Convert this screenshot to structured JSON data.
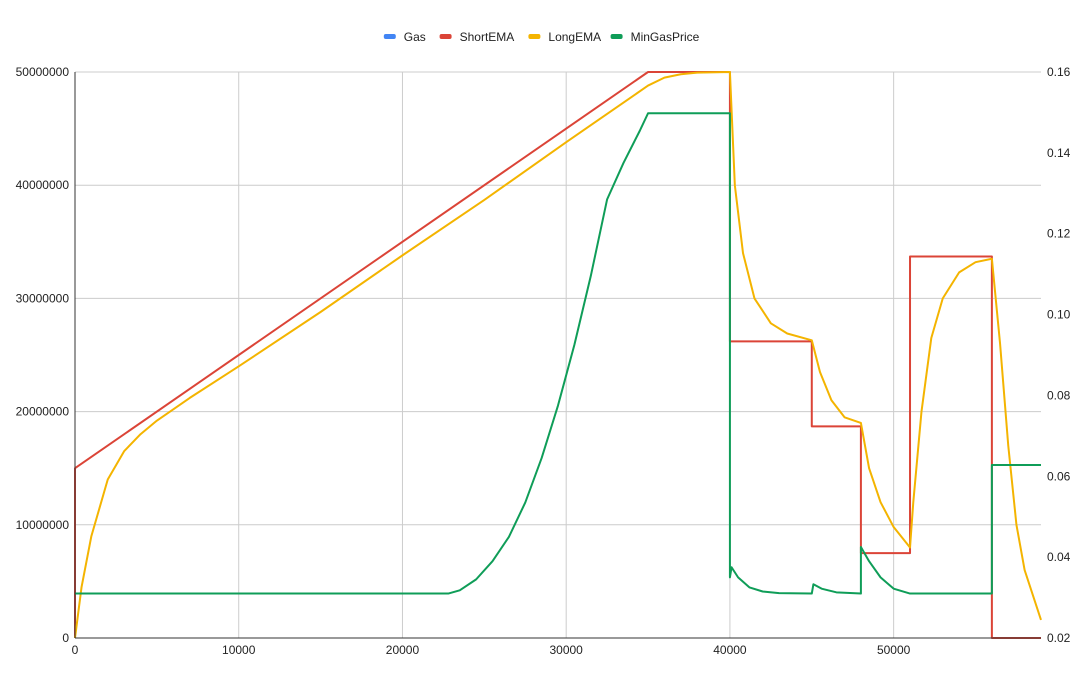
{
  "chart_data": {
    "type": "line",
    "legend_position": "top",
    "grid": true,
    "x_ticks": [
      "0",
      "10000",
      "20000",
      "30000",
      "40000",
      "50000"
    ],
    "y_left_ticks": [
      "0",
      "10000000",
      "20000000",
      "30000000",
      "40000000",
      "50000000"
    ],
    "y_right_ticks": [
      "0.02",
      "0.04",
      "0.06",
      "0.08",
      "0.10",
      "0.12",
      "0.14",
      "0.16"
    ],
    "xlim": [
      0,
      59000
    ],
    "ylim_left": [
      0,
      50000000
    ],
    "ylim_right": [
      0.02,
      0.16
    ],
    "series": [
      {
        "name": "Gas",
        "color": "#4285F4",
        "axis": "left",
        "points": []
      },
      {
        "name": "ShortEMA",
        "color": "#DB4437",
        "axis": "left",
        "points": [
          [
            0,
            0
          ],
          [
            0,
            15000000
          ],
          [
            35000,
            50000000
          ],
          [
            40000,
            50000000
          ],
          [
            40000,
            26200000
          ],
          [
            45000,
            26200000
          ],
          [
            45000,
            18700000
          ],
          [
            48000,
            18700000
          ],
          [
            48000,
            7500000
          ],
          [
            51000,
            7500000
          ],
          [
            51000,
            33700000
          ],
          [
            56000,
            33700000
          ],
          [
            56000,
            0
          ],
          [
            59000,
            0
          ]
        ]
      },
      {
        "name": "LongEMA",
        "color": "#F4B400",
        "axis": "left",
        "points": [
          [
            0,
            0
          ],
          [
            400,
            4500000
          ],
          [
            1000,
            9000000
          ],
          [
            2000,
            14000000
          ],
          [
            3000,
            16500000
          ],
          [
            4000,
            18000000
          ],
          [
            5000,
            19200000
          ],
          [
            7000,
            21200000
          ],
          [
            10000,
            24000000
          ],
          [
            15000,
            28800000
          ],
          [
            20000,
            33800000
          ],
          [
            25000,
            38700000
          ],
          [
            30000,
            43800000
          ],
          [
            34000,
            47800000
          ],
          [
            35000,
            48800000
          ],
          [
            36000,
            49500000
          ],
          [
            37000,
            49800000
          ],
          [
            38000,
            49950000
          ],
          [
            40000,
            50000000
          ],
          [
            40300,
            40000000
          ],
          [
            40800,
            34000000
          ],
          [
            41500,
            30000000
          ],
          [
            42500,
            27800000
          ],
          [
            43500,
            26900000
          ],
          [
            45000,
            26300000
          ],
          [
            45500,
            23500000
          ],
          [
            46200,
            21000000
          ],
          [
            47000,
            19500000
          ],
          [
            48000,
            19000000
          ],
          [
            48500,
            15000000
          ],
          [
            49200,
            12000000
          ],
          [
            50000,
            9800000
          ],
          [
            51000,
            8000000
          ],
          [
            51200,
            12000000
          ],
          [
            51700,
            20000000
          ],
          [
            52300,
            26500000
          ],
          [
            53000,
            30000000
          ],
          [
            54000,
            32300000
          ],
          [
            55000,
            33200000
          ],
          [
            56000,
            33500000
          ],
          [
            56500,
            26000000
          ],
          [
            57000,
            17000000
          ],
          [
            57500,
            10000000
          ],
          [
            58000,
            6000000
          ],
          [
            59000,
            1600000
          ]
        ]
      },
      {
        "name": "MinGasPrice",
        "color": "#0F9D58",
        "axis": "right",
        "points": [
          [
            0,
            0.031
          ],
          [
            22800,
            0.031
          ],
          [
            23500,
            0.0318
          ],
          [
            24500,
            0.0345
          ],
          [
            25500,
            0.039
          ],
          [
            26500,
            0.045
          ],
          [
            27500,
            0.0535
          ],
          [
            28500,
            0.0645
          ],
          [
            29500,
            0.0775
          ],
          [
            30500,
            0.0925
          ],
          [
            31500,
            0.1095
          ],
          [
            32500,
            0.1285
          ],
          [
            33500,
            0.1375
          ],
          [
            34500,
            0.1455
          ],
          [
            35000,
            0.1498
          ],
          [
            40000,
            0.1498
          ],
          [
            40000,
            0.035
          ],
          [
            40100,
            0.0375
          ],
          [
            40500,
            0.035
          ],
          [
            41200,
            0.0325
          ],
          [
            42000,
            0.0315
          ],
          [
            43000,
            0.0311
          ],
          [
            45000,
            0.031
          ],
          [
            45100,
            0.0333
          ],
          [
            45600,
            0.0322
          ],
          [
            46500,
            0.0313
          ],
          [
            48000,
            0.031
          ],
          [
            48000,
            0.0425
          ],
          [
            48500,
            0.039
          ],
          [
            49200,
            0.035
          ],
          [
            50000,
            0.0322
          ],
          [
            51000,
            0.031
          ],
          [
            56000,
            0.031
          ],
          [
            56000,
            0.0628
          ],
          [
            59000,
            0.0628
          ]
        ]
      }
    ]
  }
}
